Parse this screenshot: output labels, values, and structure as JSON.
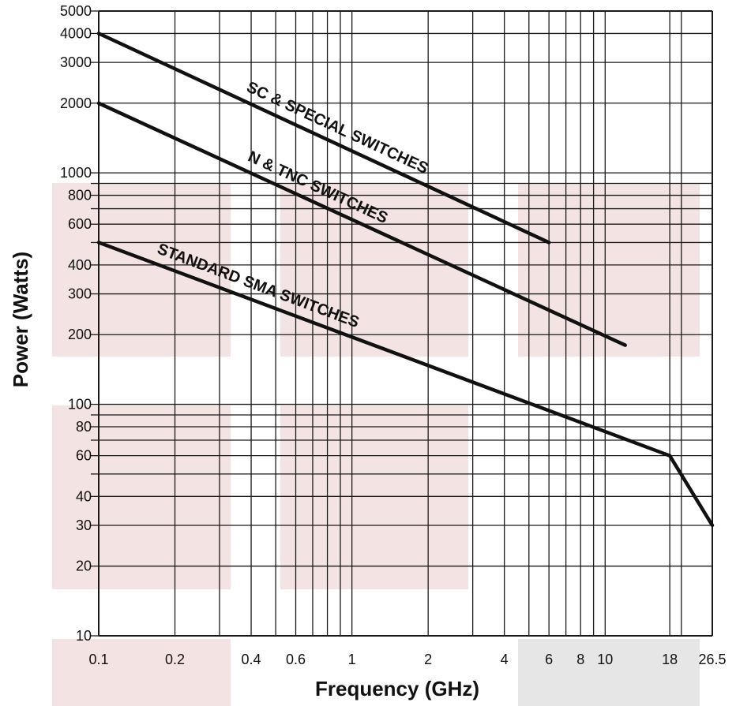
{
  "chart_data": {
    "type": "line",
    "title": "",
    "xlabel": "Frequency (GHz)",
    "ylabel": "Power (Watts)",
    "x_scale": "log",
    "y_scale": "log",
    "xlim": [
      0.1,
      26.5
    ],
    "ylim": [
      10,
      5000
    ],
    "grid": true,
    "x_tick_labels": [
      "0.1",
      "0.2",
      "0.4",
      "0.6",
      "1",
      "2",
      "4",
      "6",
      "8",
      "10",
      "18",
      "26.5"
    ],
    "y_tick_labels": [
      "10",
      "20",
      "30",
      "40",
      "60",
      "80",
      "100",
      "200",
      "300",
      "400",
      "600",
      "800",
      "1000",
      "2000",
      "3000",
      "4000",
      "5000"
    ],
    "series": [
      {
        "name": "SC & SPECIAL SWITCHES",
        "x": [
          0.1,
          6
        ],
        "y": [
          4000,
          500
        ]
      },
      {
        "name": "N & TNC SWITCHES",
        "x": [
          0.1,
          12
        ],
        "y": [
          2000,
          180
        ]
      },
      {
        "name": "STANDARD SMA SWITCHES",
        "x": [
          0.1,
          18,
          26.5
        ],
        "y": [
          500,
          60,
          30
        ]
      }
    ],
    "colors": {
      "line": "#111111",
      "grid": "#1a1a1a",
      "shade_pink": "#f3e3e3",
      "shade_gray": "#e6e6e6"
    }
  }
}
